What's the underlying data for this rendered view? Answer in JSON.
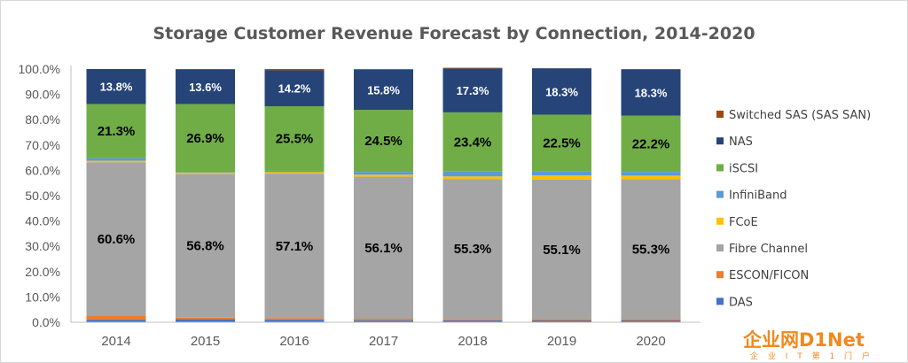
{
  "chart_data": {
    "type": "bar",
    "stacked": true,
    "title": "Storage Customer Revenue Forecast by Connection, 2014-2020",
    "categories": [
      "2014",
      "2015",
      "2016",
      "2017",
      "2018",
      "2019",
      "2020"
    ],
    "ylim": [
      0,
      100
    ],
    "y_ticks": [
      "0.0%",
      "10.0%",
      "20.0%",
      "30.0%",
      "40.0%",
      "50.0%",
      "60.0%",
      "70.0%",
      "80.0%",
      "90.0%",
      "100.0%"
    ],
    "grid": false,
    "legend_position": "right",
    "series": [
      {
        "name": "DAS",
        "color": "#4472c4",
        "values": [
          1.0,
          1.2,
          1.0,
          0.8,
          0.8,
          0.7,
          0.7
        ]
      },
      {
        "name": "ESCON/FICON",
        "color": "#ed7d31",
        "values": [
          1.6,
          0.6,
          0.6,
          0.6,
          0.5,
          0.5,
          0.5
        ]
      },
      {
        "name": "Fibre Channel",
        "color": "#a5a5a5",
        "values": [
          60.6,
          56.8,
          57.1,
          56.1,
          55.3,
          55.1,
          55.3
        ]
      },
      {
        "name": "FCoE",
        "color": "#ffc000",
        "values": [
          0.6,
          0.5,
          0.6,
          0.8,
          1.0,
          1.7,
          1.4
        ]
      },
      {
        "name": "InfiniBand",
        "color": "#5b9bd5",
        "values": [
          1.1,
          0.2,
          0.5,
          1.1,
          1.9,
          1.5,
          1.5
        ]
      },
      {
        "name": "iSCSI",
        "color": "#70ad47",
        "values": [
          21.3,
          26.9,
          25.5,
          24.5,
          23.4,
          22.5,
          22.2
        ]
      },
      {
        "name": "NAS",
        "color": "#264478",
        "values": [
          13.8,
          13.6,
          14.2,
          15.8,
          17.3,
          18.3,
          18.3
        ]
      },
      {
        "name": "Switched SAS (SAS SAN)",
        "color": "#9e480e",
        "values": [
          0.0,
          0.2,
          0.5,
          0.3,
          0.3,
          0.0,
          0.1
        ]
      }
    ],
    "data_labels": {
      "Fibre Channel": [
        "60.6%",
        "56.8%",
        "57.1%",
        "56.1%",
        "55.3%",
        "55.1%",
        "55.3%"
      ],
      "iSCSI": [
        "21.3%",
        "26.9%",
        "25.5%",
        "24.5%",
        "23.4%",
        "22.5%",
        "22.2%"
      ],
      "NAS": [
        "13.8%",
        "13.6%",
        "14.2%",
        "15.8%",
        "17.3%",
        "18.3%",
        "18.3%"
      ]
    },
    "legend_order": [
      "Switched SAS (SAS SAN)",
      "NAS",
      "iSCSI",
      "InfiniBand",
      "FCoE",
      "Fibre Channel",
      "ESCON/FICON",
      "DAS"
    ]
  },
  "watermark": {
    "main": "企业网D1Net",
    "sub": "企 业 I T 第 1 门 户"
  }
}
